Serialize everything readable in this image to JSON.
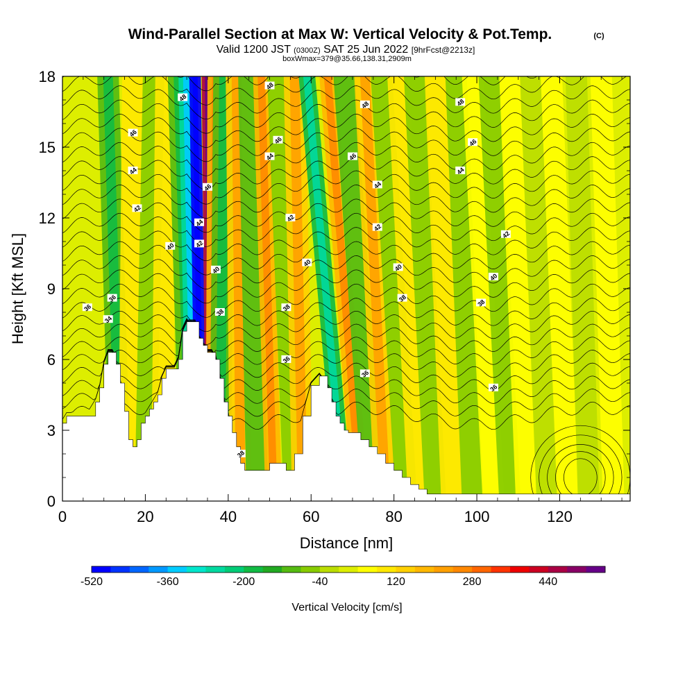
{
  "title": {
    "main": "Wind-Parallel Section at Max W: Vertical Velocity & Pot.Temp.",
    "copyright": "(C)",
    "line2_a": "Valid 1200 JST",
    "line2_b": "(0300Z)",
    "line2_c": "SAT 25 Jun 2022",
    "line2_d": "[9hrFcst@2213z]",
    "line3": "boxWmax=379@35.66,138.31,2909m"
  },
  "chart_data": {
    "type": "heatmap",
    "xlabel": "Distance [nm]",
    "ylabel": "Height [Kft MSL]",
    "xlim": [
      0,
      137
    ],
    "ylim": [
      0,
      18
    ],
    "x_ticks": [
      0,
      20,
      40,
      60,
      80,
      100,
      120
    ],
    "y_ticks": [
      0,
      3,
      6,
      9,
      12,
      15,
      18
    ],
    "colorbar": {
      "label": "Vertical Velocity [cm/s]",
      "min": -520,
      "max": 520,
      "step": 40,
      "tick_values": [
        -520,
        -360,
        -200,
        -40,
        120,
        280,
        440
      ],
      "colors": [
        "#0000ff",
        "#0033ff",
        "#0066ff",
        "#0099ff",
        "#00ccff",
        "#00e6cc",
        "#00d9a0",
        "#00cc77",
        "#11bb44",
        "#22aa22",
        "#55bb11",
        "#88cc00",
        "#bbdd00",
        "#ddee00",
        "#ffff00",
        "#ffe800",
        "#ffd000",
        "#ffb800",
        "#ffa000",
        "#ff8800",
        "#ff6600",
        "#ff3300",
        "#ee0000",
        "#cc0022",
        "#aa0044",
        "#880066",
        "#660088"
      ]
    },
    "terrain_profile": {
      "distance": [
        0,
        1,
        4,
        6,
        8,
        9,
        10,
        11,
        12,
        13,
        14,
        15,
        16,
        17,
        18,
        19,
        20,
        21,
        22,
        23,
        24,
        25,
        26,
        27,
        28,
        29,
        30,
        31,
        32,
        33,
        34,
        35,
        36,
        37,
        38,
        39,
        40,
        41,
        42,
        43,
        44,
        46,
        48,
        50,
        52,
        54,
        56,
        58,
        60,
        62,
        64,
        65,
        66,
        67,
        68,
        69,
        70,
        72,
        74,
        76,
        78,
        80,
        82,
        84,
        86,
        88,
        90,
        92,
        100,
        110,
        120,
        130,
        137
      ],
      "height": [
        3.3,
        3.6,
        3.6,
        3.6,
        4.2,
        4.8,
        5.8,
        6.3,
        6.3,
        5.8,
        5.0,
        3.8,
        2.6,
        2.3,
        2.6,
        3.3,
        3.6,
        3.9,
        4.2,
        4.5,
        5.2,
        5.6,
        5.6,
        5.6,
        6.0,
        7.2,
        7.6,
        7.6,
        7.6,
        6.9,
        6.6,
        6.3,
        6.3,
        6.0,
        5.2,
        4.2,
        3.6,
        2.9,
        2.3,
        1.6,
        1.3,
        1.3,
        1.3,
        1.6,
        1.6,
        1.3,
        2.0,
        3.6,
        4.9,
        5.3,
        4.8,
        4.2,
        3.6,
        3.3,
        3.0,
        2.9,
        2.9,
        2.6,
        2.3,
        2.0,
        1.6,
        1.3,
        1.0,
        0.7,
        0.5,
        0.3,
        0.3,
        0.3,
        0.3,
        0.3,
        0.3,
        0.3,
        0.3
      ]
    },
    "theta_contour_labels": [
      {
        "value": "34",
        "x": 11,
        "y": 7.7
      },
      {
        "value": "36",
        "x": 6,
        "y": 8.2
      },
      {
        "value": "36",
        "x": 12,
        "y": 8.6
      },
      {
        "value": "38",
        "x": 38,
        "y": 8.0
      },
      {
        "value": "36",
        "x": 54,
        "y": 6.0
      },
      {
        "value": "38",
        "x": 54,
        "y": 8.2
      },
      {
        "value": "36",
        "x": 73,
        "y": 5.4
      },
      {
        "value": "38",
        "x": 82,
        "y": 8.6
      },
      {
        "value": "38",
        "x": 101,
        "y": 8.4
      },
      {
        "value": "36",
        "x": 104,
        "y": 4.8
      },
      {
        "value": "38",
        "x": 43,
        "y": 2.0
      },
      {
        "value": "40",
        "x": 26,
        "y": 10.8
      },
      {
        "value": "40",
        "x": 37,
        "y": 9.8
      },
      {
        "value": "40",
        "x": 59,
        "y": 10.1
      },
      {
        "value": "40",
        "x": 81,
        "y": 9.9
      },
      {
        "value": "40",
        "x": 104,
        "y": 9.5
      },
      {
        "value": "42",
        "x": 18,
        "y": 12.4
      },
      {
        "value": "42",
        "x": 33,
        "y": 10.9
      },
      {
        "value": "42",
        "x": 55,
        "y": 12.0
      },
      {
        "value": "42",
        "x": 76,
        "y": 11.6
      },
      {
        "value": "42",
        "x": 107,
        "y": 11.3
      },
      {
        "value": "44",
        "x": 17,
        "y": 14.0
      },
      {
        "value": "44",
        "x": 33,
        "y": 11.8
      },
      {
        "value": "44",
        "x": 50,
        "y": 14.6
      },
      {
        "value": "44",
        "x": 76,
        "y": 13.4
      },
      {
        "value": "44",
        "x": 96,
        "y": 14.0
      },
      {
        "value": "46",
        "x": 17,
        "y": 15.6
      },
      {
        "value": "46",
        "x": 35,
        "y": 13.3
      },
      {
        "value": "46",
        "x": 52,
        "y": 15.3
      },
      {
        "value": "46",
        "x": 70,
        "y": 14.6
      },
      {
        "value": "46",
        "x": 99,
        "y": 15.2
      },
      {
        "value": "48",
        "x": 29,
        "y": 17.1
      },
      {
        "value": "48",
        "x": 50,
        "y": 17.6
      },
      {
        "value": "48",
        "x": 73,
        "y": 16.8
      },
      {
        "value": "48",
        "x": 96,
        "y": 16.9
      }
    ],
    "vertical_velocity_bands": [
      {
        "x_top": 11,
        "x_bot": 14,
        "w": -120
      },
      {
        "x_top": 17,
        "x_bot": 16,
        "w": 80
      },
      {
        "x_top": 22,
        "x_bot": 20,
        "w": -60
      },
      {
        "x_top": 25,
        "x_bot": 24,
        "w": 80
      },
      {
        "x_top": 28,
        "x_bot": 31,
        "w": -120
      },
      {
        "x_top": 30,
        "x_bot": 32,
        "w": -280
      },
      {
        "x_top": 32,
        "x_bot": 33.5,
        "w": -520
      },
      {
        "x_top": 35,
        "x_bot": 36,
        "w": 440
      },
      {
        "x_top": 37,
        "x_bot": 36.5,
        "w": 160
      },
      {
        "x_top": 39,
        "x_bot": 38,
        "w": -120
      },
      {
        "x_top": 42,
        "x_bot": 43,
        "w": 120
      },
      {
        "x_top": 45,
        "x_bot": 47,
        "w": -100
      },
      {
        "x_top": 48,
        "x_bot": 51,
        "w": 160
      },
      {
        "x_top": 52,
        "x_bot": 56,
        "w": -80
      },
      {
        "x_top": 56,
        "x_bot": 58,
        "w": 120
      },
      {
        "x_top": 59,
        "x_bot": 68,
        "w": -200
      },
      {
        "x_top": 64,
        "x_bot": 72,
        "w": 160
      },
      {
        "x_top": 68,
        "x_bot": 75,
        "w": -100
      },
      {
        "x_top": 73,
        "x_bot": 78,
        "w": 120
      },
      {
        "x_top": 77,
        "x_bot": 83,
        "w": -80
      },
      {
        "x_top": 81,
        "x_bot": 86,
        "w": 80
      },
      {
        "x_top": 85,
        "x_bot": 90,
        "w": -80
      },
      {
        "x_top": 90,
        "x_bot": 94,
        "w": 80
      },
      {
        "x_top": 95,
        "x_bot": 99,
        "w": -80
      },
      {
        "x_top": 99,
        "x_bot": 104,
        "w": 60
      },
      {
        "x_top": 103,
        "x_bot": 108,
        "w": -80
      },
      {
        "x_top": 108,
        "x_bot": 112,
        "w": 40
      },
      {
        "x_top": 113,
        "x_bot": 117,
        "w": -40
      },
      {
        "x_top": 118,
        "x_bot": 122,
        "w": 40
      },
      {
        "x_top": 124,
        "x_bot": 127,
        "w": -40
      },
      {
        "x_top": 130,
        "x_bot": 133,
        "w": 40
      }
    ]
  }
}
